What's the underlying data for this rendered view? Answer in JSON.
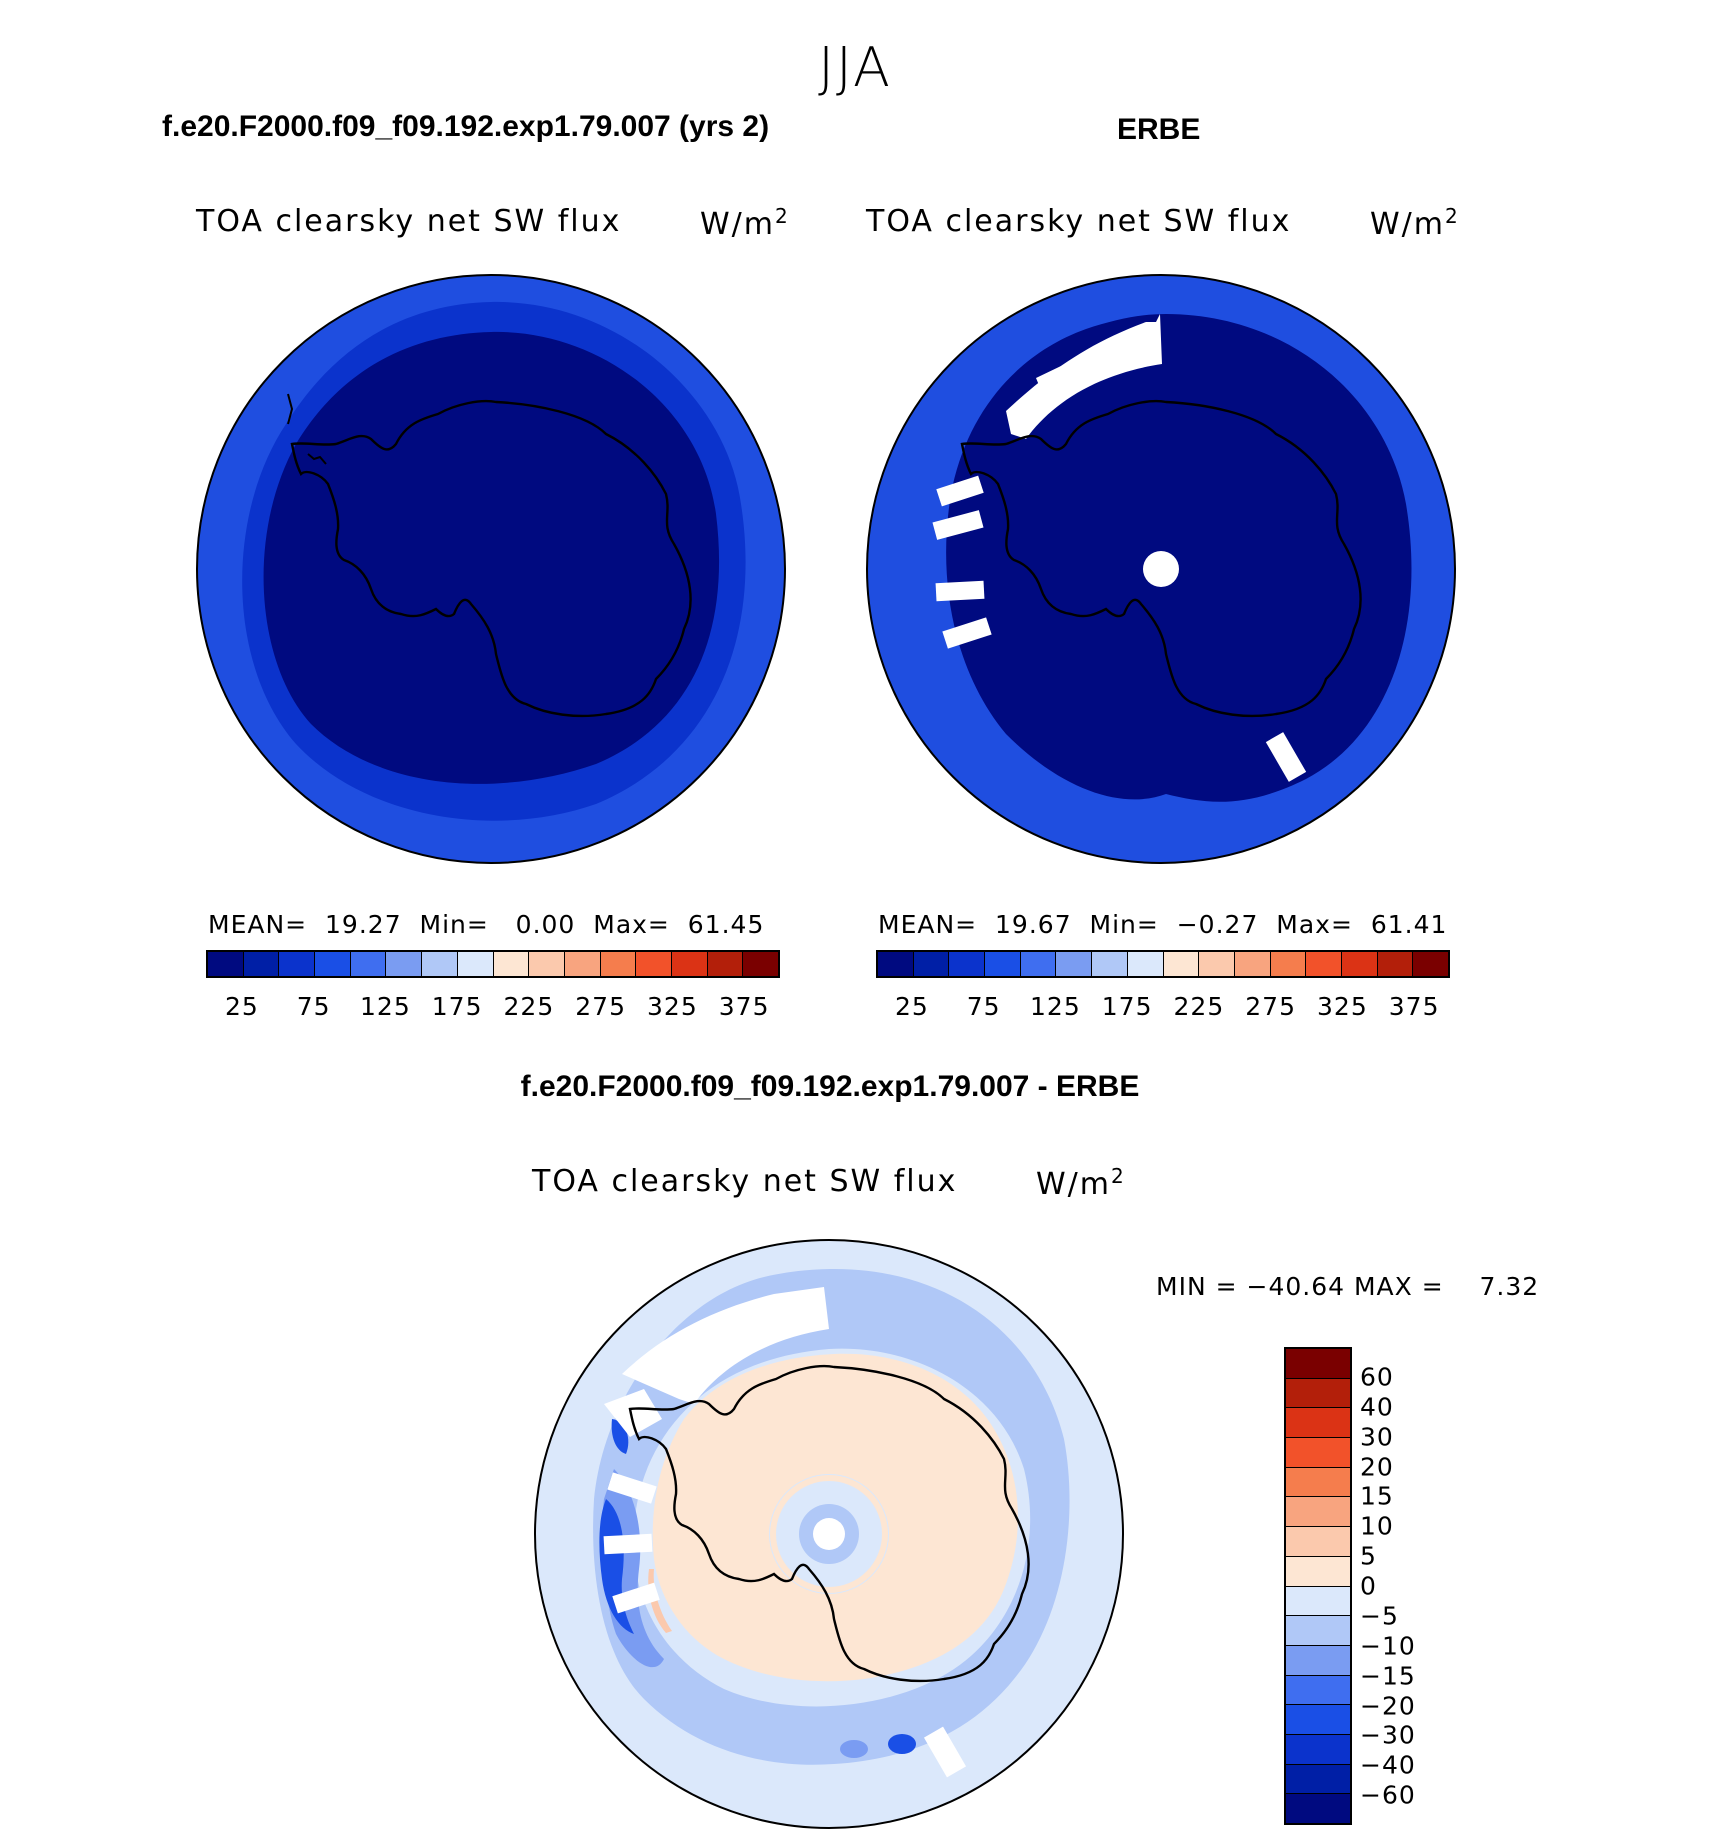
{
  "figure": {
    "season": "JJA"
  },
  "panels": {
    "model": {
      "title": "f.e20.F2000.f09_f09.192.exp1.79.007 (yrs 2)",
      "variable": "TOA clearsky net SW flux",
      "unit_base": "W/m",
      "unit_exp": "2",
      "stats": {
        "mean_label": "MEAN=",
        "mean": "19.27",
        "min_label": "Min=",
        "min": "0.00",
        "max_label": "Max=",
        "max": "61.45"
      }
    },
    "obs": {
      "title": "ERBE",
      "variable": "TOA clearsky net SW flux",
      "unit_base": "W/m",
      "unit_exp": "2",
      "stats": {
        "mean_label": "MEAN=",
        "mean": "19.67",
        "min_label": "Min=",
        "min": "−0.27",
        "max_label": "Max=",
        "max": "61.41"
      }
    },
    "diff": {
      "title": "f.e20.F2000.f09_f09.192.exp1.79.007 - ERBE",
      "variable": "TOA clearsky net SW flux",
      "unit_base": "W/m",
      "unit_exp": "2",
      "minmax": {
        "min_label": "MIN =",
        "min": "−40.64",
        "max_label": "MAX =",
        "max": "7.32"
      }
    }
  },
  "colorbars": {
    "absolute": {
      "colors": [
        "#000a80",
        "#001fa6",
        "#0b33cc",
        "#1a4fe6",
        "#3f6ef0",
        "#7a9cf2",
        "#b0c8f7",
        "#dbe8fb",
        "#fde6d3",
        "#fbc9ad",
        "#f8a47f",
        "#f57d4d",
        "#f2522a",
        "#db3315",
        "#b31f0a",
        "#7a0000"
      ],
      "tick_labels": [
        "25",
        "75",
        "125",
        "175",
        "225",
        "275",
        "325",
        "375"
      ]
    },
    "difference": {
      "colors": [
        "#7a0000",
        "#b31f0a",
        "#db3315",
        "#f2522a",
        "#f57d4d",
        "#f8a47f",
        "#fbc9ad",
        "#fde6d3",
        "#dbe8fb",
        "#b0c8f7",
        "#7a9cf2",
        "#3f6ef0",
        "#1a4fe6",
        "#0b33cc",
        "#001fa6",
        "#000a80"
      ],
      "tick_labels": [
        "60",
        "40",
        "30",
        "20",
        "15",
        "10",
        "5",
        "0",
        "−5",
        "−10",
        "−15",
        "−20",
        "−30",
        "−40",
        "−60"
      ]
    }
  },
  "map_colors": {
    "ocean_outer": "#1f4ee0",
    "interior": "#000a80",
    "ring": "#0b33cc",
    "missing": "#ffffff",
    "diff_bg": "#dbe8fb",
    "diff_land": "#fde6d3",
    "diff_neg_light": "#b0c8f7",
    "diff_neg_mid": "#7a9cf2",
    "diff_neg_strong": "#1a4fe6",
    "diff_pos": "#fbc9ad"
  }
}
